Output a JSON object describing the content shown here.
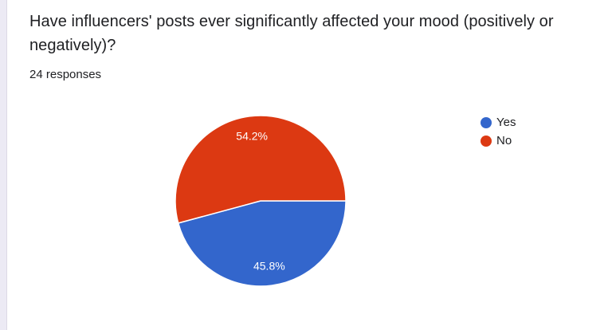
{
  "question": {
    "title": "Have influencers' posts ever significantly affected your mood (positively or negatively)?",
    "responses_text": "24 responses"
  },
  "chart_data": {
    "type": "pie",
    "categories": [
      "Yes",
      "No"
    ],
    "values": [
      45.8,
      54.2
    ],
    "labels": [
      "45.8%",
      "54.2%"
    ],
    "colors": [
      "#3366cc",
      "#dc3912"
    ],
    "legend_position": "right",
    "total_responses": 24
  }
}
